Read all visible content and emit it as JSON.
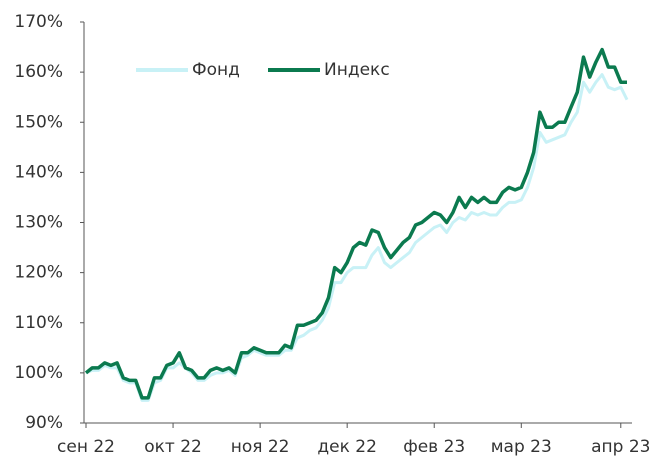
{
  "chart_data": {
    "type": "line",
    "categories": [
      "сен 22",
      null,
      null,
      null,
      null,
      null,
      null,
      null,
      null,
      null,
      null,
      null,
      null,
      null,
      "окт 22",
      null,
      null,
      null,
      null,
      null,
      null,
      null,
      null,
      null,
      null,
      null,
      null,
      null,
      "ноя 22",
      null,
      null,
      null,
      null,
      null,
      null,
      null,
      null,
      null,
      null,
      null,
      null,
      null,
      "дек 22",
      null,
      null,
      null,
      null,
      null,
      null,
      null,
      null,
      null,
      null,
      null,
      null,
      null,
      "фев 23",
      null,
      null,
      null,
      null,
      null,
      null,
      null,
      null,
      null,
      null,
      null,
      null,
      null,
      "мар 23",
      null,
      null,
      null,
      null,
      null,
      null,
      null,
      null,
      null,
      null,
      null,
      null,
      null,
      null,
      null,
      "апр 23",
      null
    ],
    "series": [
      {
        "name": "Фонд",
        "color": "#c8f1f6",
        "values": [
          100,
          100.5,
          100.5,
          101.5,
          101,
          101,
          98.5,
          98,
          98,
          94.5,
          94.5,
          98,
          98.5,
          101,
          101,
          102,
          101,
          100,
          98.5,
          98.5,
          99.5,
          100,
          100,
          100.5,
          99.5,
          103,
          103.5,
          104.5,
          104,
          103.5,
          103.5,
          103.5,
          104.5,
          104.5,
          107,
          107.5,
          108.5,
          109,
          110.5,
          113,
          118,
          118,
          120,
          121,
          121,
          121,
          123.5,
          125,
          122,
          121,
          122,
          123,
          124,
          126,
          127,
          128,
          129,
          129.5,
          128,
          130,
          131,
          130.5,
          132,
          131.5,
          132,
          131.5,
          131.5,
          133,
          134,
          134,
          134.5,
          137,
          141,
          148,
          146,
          146.5,
          147,
          147.5,
          150,
          152,
          158,
          156,
          158,
          159.5,
          157,
          156.5,
          157,
          154.5
        ]
      },
      {
        "name": "Индекс",
        "color": "#0b7a4f",
        "values": [
          100,
          101,
          101,
          102,
          101.5,
          102,
          99,
          98.5,
          98.5,
          95,
          95,
          99,
          99,
          101.5,
          102,
          104,
          101,
          100.5,
          99,
          99,
          100.5,
          101,
          100.5,
          101,
          100,
          104,
          104,
          105,
          104.5,
          104,
          104,
          104,
          105.5,
          105,
          109.5,
          109.5,
          110,
          110.5,
          112,
          115,
          121,
          120,
          122,
          125,
          126,
          125.5,
          128.5,
          128,
          125,
          123,
          124.5,
          126,
          127,
          129.5,
          130,
          131,
          132,
          131.5,
          130,
          132,
          135,
          133,
          135,
          134,
          135,
          134,
          134,
          136,
          137,
          136.5,
          137,
          140,
          144,
          152,
          149,
          149,
          150,
          150,
          153,
          156,
          163,
          159,
          162,
          164.5,
          161,
          161,
          158,
          158
        ]
      }
    ],
    "ylim": [
      90,
      170
    ],
    "yticks": [
      {
        "value": 90,
        "label": "90%"
      },
      {
        "value": 100,
        "label": "100%"
      },
      {
        "value": 110,
        "label": "110%"
      },
      {
        "value": 120,
        "label": "120%"
      },
      {
        "value": 130,
        "label": "130%"
      },
      {
        "value": 140,
        "label": "140%"
      },
      {
        "value": 150,
        "label": "150%"
      },
      {
        "value": 160,
        "label": "160%"
      },
      {
        "value": 170,
        "label": "170%"
      }
    ],
    "grid": false,
    "legend": "top"
  }
}
